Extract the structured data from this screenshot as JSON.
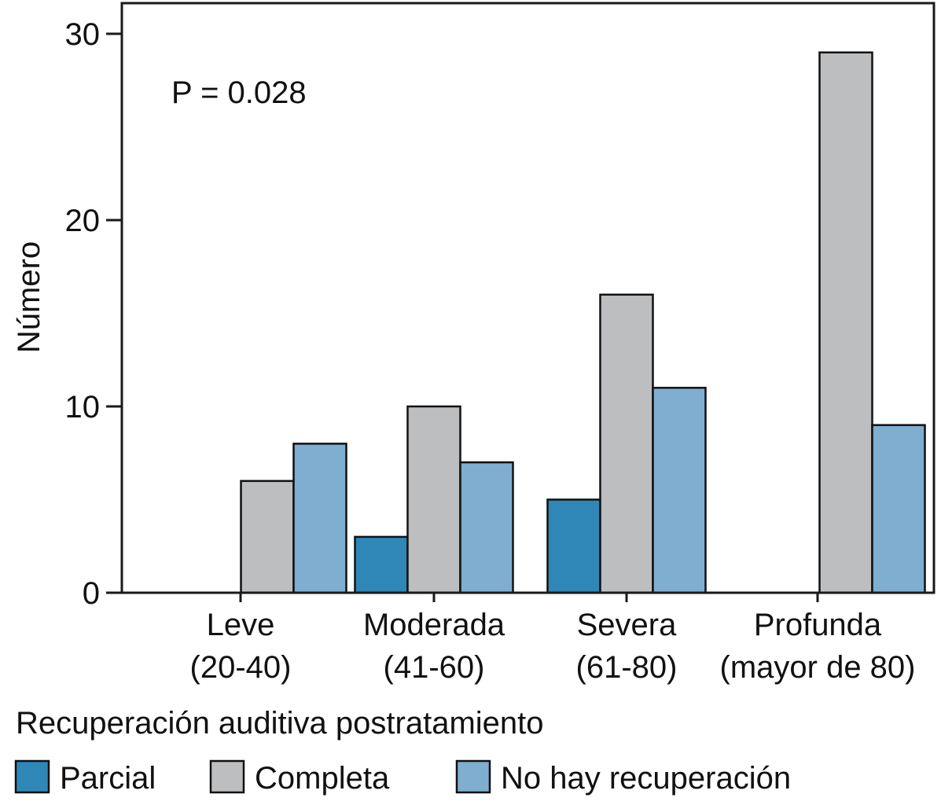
{
  "chart_data": {
    "type": "bar",
    "title": "",
    "xlabel": "",
    "ylabel": "Número",
    "ylim": [
      0,
      31.5
    ],
    "yticks": [
      0,
      10,
      20,
      30
    ],
    "grid": false,
    "annotation": "P = 0.028",
    "categories": [
      {
        "line1": "Leve",
        "line2": "(20-40)"
      },
      {
        "line1": "Moderada",
        "line2": "(41-60)"
      },
      {
        "line1": "Severa",
        "line2": "(61-80)"
      },
      {
        "line1": "Profunda",
        "line2": "(mayor de 80)"
      }
    ],
    "series": [
      {
        "name": "Parcial",
        "color": "#2e87b7",
        "values": [
          0,
          3,
          5,
          0
        ]
      },
      {
        "name": "Completa",
        "color": "#bdbec0",
        "values": [
          6,
          10,
          16,
          29
        ]
      },
      {
        "name": "No hay recuperación",
        "color": "#80aed1",
        "values": [
          8,
          7,
          11,
          9
        ]
      }
    ],
    "legend": {
      "title": "Recuperación auditiva postratamiento",
      "placement": "bottom"
    }
  }
}
